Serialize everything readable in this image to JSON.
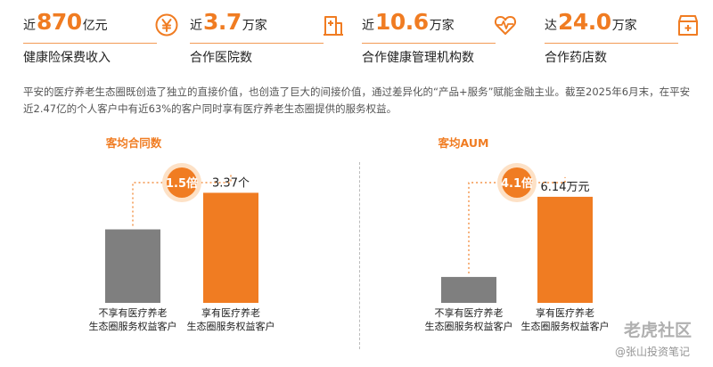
{
  "stats": [
    {
      "prefix": "近",
      "number": "870",
      "unit": "亿元",
      "label": "健康险保费收入",
      "icon": "yen-coin-icon"
    },
    {
      "prefix": "近",
      "number": "3.7",
      "unit": "万家",
      "label": "合作医院数",
      "icon": "hospital-icon"
    },
    {
      "prefix": "近",
      "number": "10.6",
      "unit": "万家",
      "label": "合作健康管理机构数",
      "icon": "heart-pulse-icon"
    },
    {
      "prefix": "达",
      "number": "24.0",
      "unit": "万家",
      "label": "合作药店数",
      "icon": "pharmacy-store-icon"
    }
  ],
  "paragraph": "平安的医疗养老生态圈既创造了独立的直接价值，也创造了巨大的间接价值，通过差异化的“产品+服务”赋能金融主业。截至2025年6月末，在平安近2.47亿的个人客户中有近63%的客户同时享有医疗养老生态圈提供的服务权益。",
  "colors": {
    "accent": "#f07c22",
    "gray_bar": "#7f7f7f",
    "text": "#222222"
  },
  "chart_data": [
    {
      "type": "bar",
      "title": "客均合同数",
      "categories": [
        "不享有医疗养老生态圈服务权益客户",
        "享有医疗养老生态圈服务权益客户"
      ],
      "category_lines": [
        [
          "不享有医疗养老",
          "生态圈服务权益客户"
        ],
        [
          "享有医疗养老",
          "生态圈服务权益客户"
        ]
      ],
      "values": [
        2.25,
        3.37
      ],
      "value_labels": [
        "",
        "3.37个"
      ],
      "ratio_label": "1.5倍",
      "ylim": [
        0,
        3.6
      ]
    },
    {
      "type": "bar",
      "title": "客均AUM",
      "categories": [
        "不享有医疗养老生态圈服务权益客户",
        "享有医疗养老生态圈服务权益客户"
      ],
      "category_lines": [
        [
          "不享有医疗养老",
          "生态圈服务权益客户"
        ],
        [
          "享有医疗养老",
          "生态圈服务权益客户"
        ]
      ],
      "values": [
        1.5,
        6.14
      ],
      "value_labels": [
        "",
        "6.14万元"
      ],
      "ratio_label": "4.1倍",
      "ylim": [
        0,
        6.6
      ]
    }
  ],
  "watermarks": {
    "main": "老虎社区",
    "sub": "@张山投资笔记"
  }
}
